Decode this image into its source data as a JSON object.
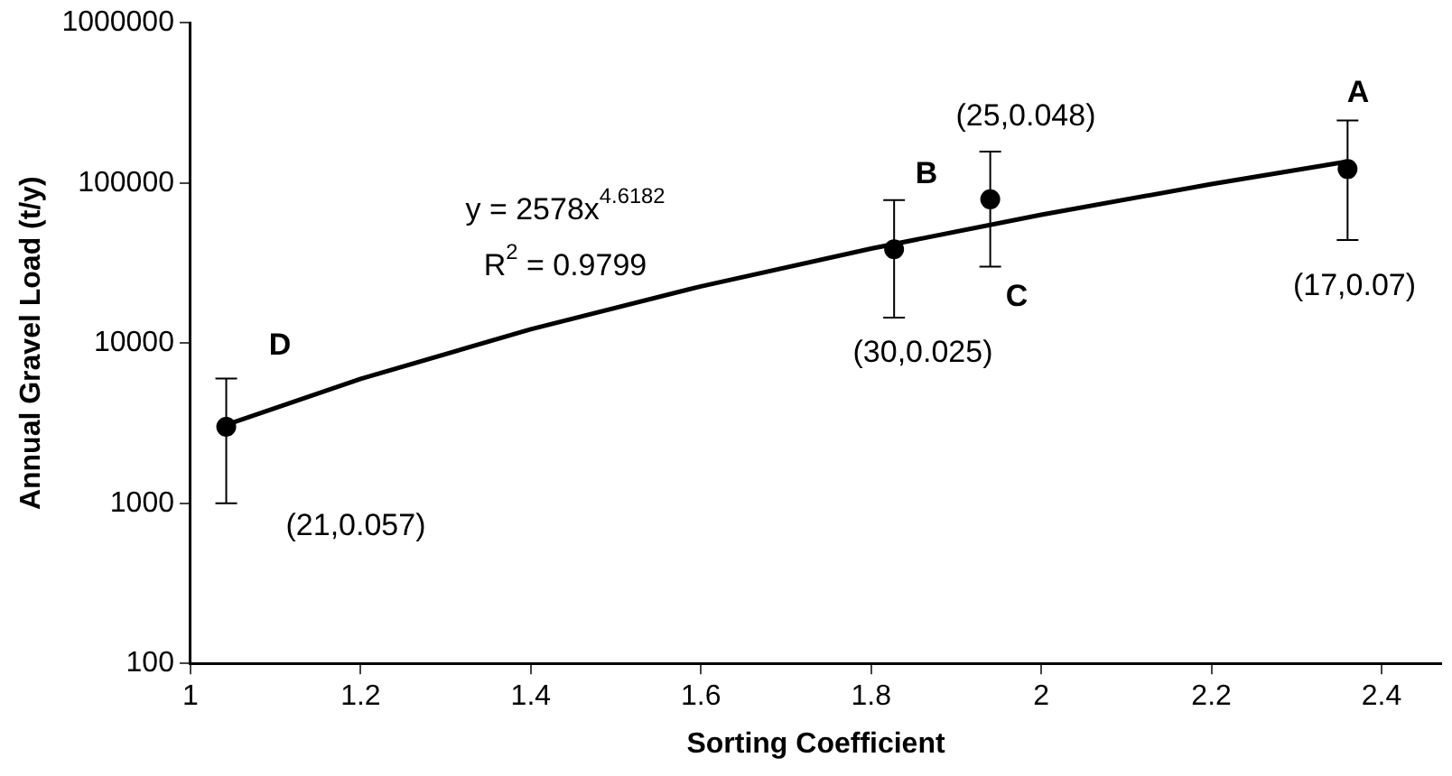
{
  "chart_data": {
    "type": "scatter",
    "xlabel": "Sorting Coefficient",
    "ylabel": "Annual Gravel Load (t/y)",
    "x": [
      1.042,
      1.827,
      1.94,
      2.36
    ],
    "series": [
      {
        "color": "#000000",
        "marker": "circle",
        "values": [
          3000,
          38500,
          79000,
          122000
        ],
        "errors": [
          [
            1000,
            6000
          ],
          [
            14400,
            78000
          ],
          [
            30000,
            157000
          ],
          [
            44000,
            245000
          ]
        ]
      },
      {
        "type": "line",
        "color": "#000000",
        "marker": "none",
        "x": [
          1.042,
          1.2,
          1.4,
          1.6,
          1.8,
          2.0,
          2.2,
          2.36
        ],
        "values": [
          3090,
          5980,
          12200,
          22600,
          38900,
          63300,
          98300,
          136000
        ]
      }
    ],
    "annotations": [
      "y = 2578x$^{4.6182}$",
      "R$^{2}$ = 0.9799",
      "D",
      "(21,0.057)",
      "B",
      "(30,0.025)",
      "C",
      "(25,0.048)",
      "A",
      "(17,0.07)"
    ],
    "log": "y",
    "xlim": [
      1,
      2.47
    ],
    "xticks": [
      1,
      1.2,
      1.4,
      1.6,
      1.8,
      2,
      2.2,
      2.4
    ],
    "ylim": [
      100,
      1000000
    ],
    "yticks": [
      100,
      1000,
      10000,
      100000,
      1000000
    ],
    "grid": false,
    "legend": false,
    "line_style": "solid"
  }
}
